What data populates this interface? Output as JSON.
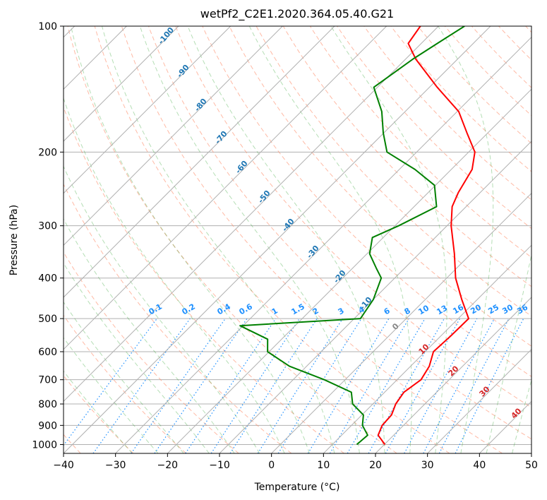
{
  "chart_data": {
    "type": "line",
    "title": "wetPf2_C2E1.2020.364.05.40.G21",
    "xlabel": "Temperature (°C)",
    "ylabel": "Pressure (hPa)",
    "xlim": [
      -40,
      50
    ],
    "ylim": [
      1050,
      100
    ],
    "y_scale": "log",
    "skew": "skew-T log-P",
    "x_ticks": [
      -40,
      -30,
      -20,
      -10,
      0,
      10,
      20,
      30,
      40,
      50
    ],
    "y_ticks": [
      100,
      200,
      300,
      400,
      500,
      600,
      700,
      800,
      900,
      1000
    ],
    "grid": true,
    "series": [
      {
        "name": "",
        "color": "#ff0000",
        "points": [
          [
            1000,
            20.1
          ],
          [
            950,
            17.0
          ],
          [
            900,
            15.9
          ],
          [
            850,
            15.7
          ],
          [
            800,
            14.4
          ],
          [
            750,
            13.7
          ],
          [
            700,
            14.6
          ],
          [
            650,
            13.6
          ],
          [
            600,
            11.6
          ],
          [
            550,
            11.9
          ],
          [
            500,
            12.0
          ],
          [
            450,
            7.0
          ],
          [
            400,
            1.7
          ],
          [
            350,
            -3.2
          ],
          [
            300,
            -9.2
          ],
          [
            270,
            -12.7
          ],
          [
            250,
            -14.2
          ],
          [
            220,
            -16.0
          ],
          [
            200,
            -18.8
          ],
          [
            180,
            -24.0
          ],
          [
            160,
            -29.7
          ],
          [
            140,
            -38.5
          ],
          [
            120,
            -48.0
          ],
          [
            110,
            -52.5
          ],
          [
            100,
            -53.5
          ]
        ]
      },
      {
        "name": "",
        "color": "#008000",
        "points": [
          [
            1000,
            14.7
          ],
          [
            950,
            15.0
          ],
          [
            900,
            12.1
          ],
          [
            850,
            10.3
          ],
          [
            800,
            6.1
          ],
          [
            750,
            3.6
          ],
          [
            700,
            -4.0
          ],
          [
            650,
            -13.3
          ],
          [
            600,
            -20.3
          ],
          [
            560,
            -22.7
          ],
          [
            520,
            -30.6
          ],
          [
            500,
            -8.8
          ],
          [
            450,
            -10.0
          ],
          [
            400,
            -12.6
          ],
          [
            380,
            -15.3
          ],
          [
            350,
            -19.5
          ],
          [
            320,
            -22.1
          ],
          [
            300,
            -19.3
          ],
          [
            270,
            -15.7
          ],
          [
            240,
            -20.2
          ],
          [
            220,
            -27.0
          ],
          [
            200,
            -35.7
          ],
          [
            180,
            -40.1
          ],
          [
            160,
            -44.5
          ],
          [
            140,
            -50.7
          ],
          [
            120,
            -48.6
          ],
          [
            110,
            -46.9
          ],
          [
            100,
            -45.0
          ]
        ]
      }
    ],
    "mixing_ratio_labels": [
      "0.1",
      "0.2",
      "0.4",
      "0.6",
      "1",
      "1.5",
      "2",
      "3",
      "4",
      "6",
      "8",
      "10",
      "13",
      "16",
      "20",
      "25",
      "30",
      "36"
    ],
    "dry_adiabat_labels": [
      "-100",
      "-90",
      "-80",
      "-70",
      "-60",
      "-50",
      "-40",
      "-30",
      "-20",
      "-10"
    ],
    "moist_adiabat_labels": [
      "0",
      "10",
      "20",
      "30",
      "40"
    ],
    "colors": {
      "isotherm": "#b0b0b0",
      "dry_adiabat": "#ff8c69",
      "moist_adiabat": "#2ca02c",
      "mixing_ratio": "#1e90ff",
      "isohume_label": "#1e90ff",
      "dry_label": "#1f77b4",
      "moist_label": "#d62728"
    }
  }
}
